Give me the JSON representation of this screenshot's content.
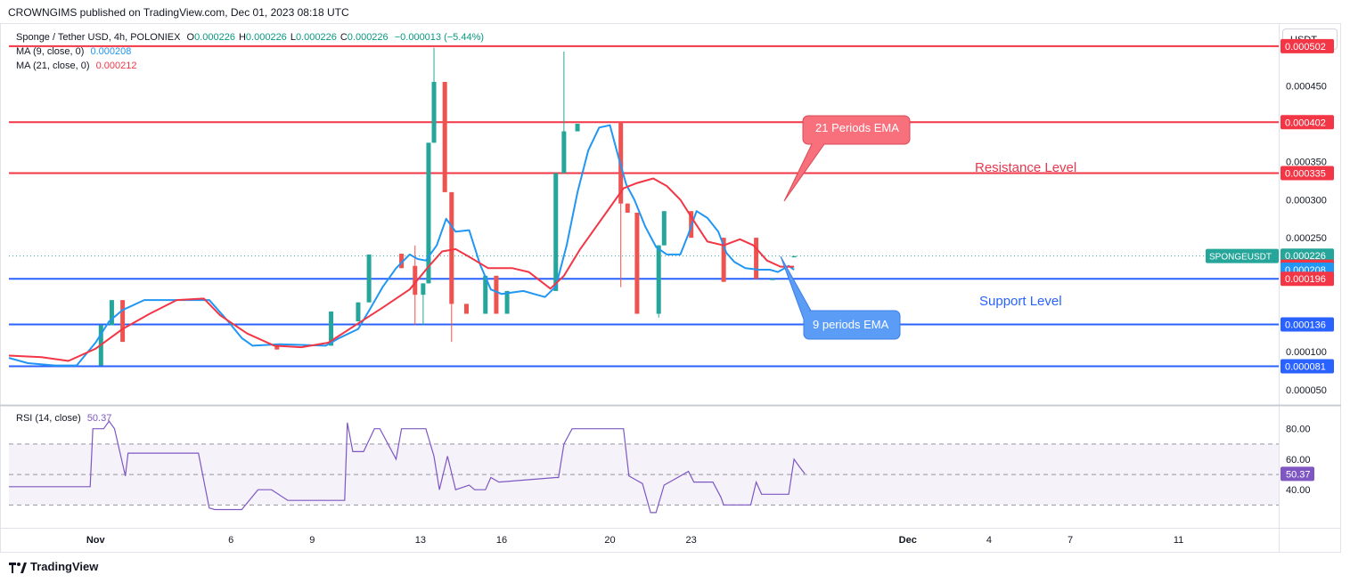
{
  "publisher": "CROWNGIMS published on TradingView.com, Dec 01, 2023 08:18 UTC",
  "header": {
    "title": "Sponge / Tether USD, 4h, POLONIEX",
    "ohlc": [
      {
        "k": "O",
        "v": "0.000226"
      },
      {
        "k": "H",
        "v": "0.000226"
      },
      {
        "k": "L",
        "v": "0.000226"
      },
      {
        "k": "C",
        "v": "0.000226"
      }
    ],
    "change": "−0.000013 (−5.44%)",
    "ma9_label": "MA (9, close, 0)",
    "ma9_value": "0.000208",
    "ma21_label": "MA (21, close, 0)",
    "ma21_value": "0.000212"
  },
  "unit_button": "USDT",
  "rsi": {
    "label": "RSI (14, close)",
    "value": "50.37",
    "ticks": [
      "80.00",
      "60.00",
      "40.00"
    ],
    "upper_band": 70,
    "lower_band": 30
  },
  "annotations": {
    "ema21": "21 Periods EMA",
    "ema9": "9 periods EMA",
    "resistance": "Resistance Level",
    "support": "Support Level"
  },
  "footer": {
    "brand": "TradingView"
  },
  "colors": {
    "bull": "#26a69a",
    "bear": "#ef5350",
    "ma9": "#2196f3",
    "ma21": "#f23645",
    "resistance_line": "#f23645",
    "support_line": "#2962ff",
    "rsi_line": "#7e57c2",
    "ema21_callout": "#f7707c",
    "ema9_callout": "#5b9cf6"
  },
  "chart_data": [
    {
      "type": "line",
      "name": "price",
      "price_axis": {
        "ticks": [
          "0.000450",
          "0.000350",
          "0.000300",
          "0.000250",
          "0.000100",
          "0.000050"
        ],
        "tick_values": [
          0.00045,
          0.00035,
          0.0003,
          0.00025,
          0.0001,
          5e-05
        ],
        "ylim": [
          3e-05,
          0.00053
        ]
      },
      "x_axis": {
        "labels": [
          "Nov",
          "6",
          "9",
          "13",
          "16",
          "20",
          "23",
          "Dec",
          "4",
          "7",
          "11"
        ],
        "label_days": [
          1,
          6,
          9,
          13,
          16,
          20,
          23,
          31,
          34,
          37,
          41
        ],
        "xlim": [
          -2.2,
          44.7
        ]
      },
      "horizontal_levels": [
        {
          "value": 0.000502,
          "label": "0.000502",
          "kind": "resistance"
        },
        {
          "value": 0.000402,
          "label": "0.000402",
          "kind": "resistance"
        },
        {
          "value": 0.000335,
          "label": "0.000335",
          "kind": "resistance"
        },
        {
          "value": 0.000196,
          "label": "0.000196",
          "kind": "support"
        },
        {
          "value": 0.000136,
          "label": "0.000136",
          "kind": "support"
        },
        {
          "value": 8.1e-05,
          "label": "0.000081",
          "kind": "support"
        }
      ],
      "price_labels": [
        {
          "value": 0.000226,
          "text": "0.000226",
          "tag": "SPONGEUSDT",
          "color": "#26a69a"
        },
        {
          "value": 0.000212,
          "text": "0.000212",
          "color": "#f23645"
        },
        {
          "value": 0.000208,
          "text": "0.000208",
          "color": "#2196f3"
        },
        {
          "value": 0.000196,
          "text": "0.000196",
          "color": "#f23645"
        }
      ],
      "current_price": 0.000226,
      "candles": [
        {
          "d": 1.2,
          "o": 8.2e-05,
          "c": 0.000135,
          "h": 0.000135,
          "l": 8.2e-05
        },
        {
          "d": 1.6,
          "o": 0.000135,
          "c": 0.000168,
          "h": 0.000168,
          "l": 0.000135
        },
        {
          "d": 2.0,
          "o": 0.000168,
          "c": 0.000113,
          "h": 0.000168,
          "l": 0.000113
        },
        {
          "d": 7.7,
          "o": 0.00011,
          "c": 0.000103,
          "h": 0.00011,
          "l": 0.000103
        },
        {
          "d": 9.7,
          "o": 0.000108,
          "c": 0.000153,
          "h": 0.000153,
          "l": 0.000108
        },
        {
          "d": 10.7,
          "o": 0.00014,
          "c": 0.000165,
          "h": 0.000165,
          "l": 0.00014
        },
        {
          "d": 11.1,
          "o": 0.000165,
          "c": 0.000228,
          "h": 0.000228,
          "l": 0.000165
        },
        {
          "d": 12.3,
          "o": 0.000229,
          "c": 0.00021,
          "h": 0.000229,
          "l": 0.00021
        },
        {
          "d": 12.8,
          "o": 0.000213,
          "c": 0.000175,
          "h": 0.00024,
          "l": 0.000135
        },
        {
          "d": 13.1,
          "o": 0.000175,
          "c": 0.00019,
          "h": 0.00019,
          "l": 0.000135
        },
        {
          "d": 13.3,
          "o": 0.00019,
          "c": 0.000375,
          "h": 0.000375,
          "l": 0.00019
        },
        {
          "d": 13.5,
          "o": 0.000375,
          "c": 0.000455,
          "h": 0.0005,
          "l": 0.000375
        },
        {
          "d": 13.9,
          "o": 0.000455,
          "c": 0.00031,
          "h": 0.000455,
          "l": 0.00031
        },
        {
          "d": 14.15,
          "o": 0.00031,
          "c": 0.000163,
          "h": 0.00031,
          "l": 0.000113
        },
        {
          "d": 14.7,
          "o": 0.000163,
          "c": 0.00015,
          "h": 0.000163,
          "l": 0.00015
        },
        {
          "d": 15.4,
          "o": 0.00015,
          "c": 0.0002,
          "h": 0.0002,
          "l": 0.00015
        },
        {
          "d": 15.8,
          "o": 0.0002,
          "c": 0.00015,
          "h": 0.0002,
          "l": 0.00015
        },
        {
          "d": 16.2,
          "o": 0.00015,
          "c": 0.00018,
          "h": 0.00018,
          "l": 0.00015
        },
        {
          "d": 18.0,
          "o": 0.00018,
          "c": 0.000335,
          "h": 0.000335,
          "l": 0.00018
        },
        {
          "d": 18.3,
          "o": 0.000335,
          "c": 0.00039,
          "h": 0.000495,
          "l": 0.000335
        },
        {
          "d": 18.8,
          "o": 0.00039,
          "c": 0.0004,
          "h": 0.0004,
          "l": 0.00039
        },
        {
          "d": 20.4,
          "o": 0.000402,
          "c": 0.000295,
          "h": 0.000402,
          "l": 0.000185
        },
        {
          "d": 20.65,
          "o": 0.000295,
          "c": 0.000283,
          "h": 0.000295,
          "l": 0.000283
        },
        {
          "d": 21.0,
          "o": 0.000283,
          "c": 0.00015,
          "h": 0.000283,
          "l": 0.00015
        },
        {
          "d": 21.8,
          "o": 0.00015,
          "c": 0.00024,
          "h": 0.00024,
          "l": 0.000145
        },
        {
          "d": 22.0,
          "o": 0.00024,
          "c": 0.000285,
          "h": 0.000285,
          "l": 0.00024
        },
        {
          "d": 23.0,
          "o": 0.000285,
          "c": 0.00025,
          "h": 0.000285,
          "l": 0.00025
        },
        {
          "d": 24.2,
          "o": 0.00025,
          "c": 0.000192,
          "h": 0.00025,
          "l": 0.000192
        },
        {
          "d": 25.4,
          "o": 0.00025,
          "c": 0.000196,
          "h": 0.00025,
          "l": 0.000196
        },
        {
          "d": 26.0,
          "o": 0.000196,
          "c": 0.000196,
          "h": 0.000196,
          "l": 0.000196
        },
        {
          "d": 26.8,
          "o": 0.000226,
          "c": 0.000226,
          "h": 0.000226,
          "l": 0.000226
        }
      ],
      "series": [
        {
          "name": "MA (9, close, 0)",
          "color": "#2196f3",
          "x": [
            -2.2,
            -1.5,
            -0.5,
            0.3,
            1.0,
            1.5,
            2.0,
            2.8,
            3.8,
            4.6,
            5.2,
            5.9,
            6.4,
            6.8,
            7.8,
            9.5,
            10.0,
            10.7,
            11.2,
            11.6,
            12.1,
            12.6,
            12.9,
            13.2,
            13.6,
            13.95,
            14.3,
            14.8,
            15.2,
            15.6,
            16.0,
            16.8,
            17.2,
            17.6,
            18.0,
            18.4,
            18.8,
            19.2,
            19.6,
            20.0,
            20.3,
            20.6,
            20.9,
            21.3,
            21.7,
            22.1,
            22.6,
            22.9,
            23.2,
            23.6,
            24.0,
            24.3,
            24.6,
            25.0,
            25.5,
            25.9,
            26.2,
            26.6,
            26.8
          ],
          "y": [
            9.2e-05,
            8.5e-05,
            8.2e-05,
            8.2e-05,
            0.000112,
            0.00014,
            0.000155,
            0.000168,
            0.000168,
            0.000168,
            0.000168,
            0.00014,
            0.000118,
            0.000108,
            0.00011,
            0.000108,
            0.000118,
            0.00013,
            0.00016,
            0.000185,
            0.00021,
            0.000228,
            0.000222,
            0.00022,
            0.00024,
            0.000275,
            0.000258,
            0.00026,
            0.000215,
            0.000182,
            0.000176,
            0.00018,
            0.000176,
            0.000172,
            0.000186,
            0.00024,
            0.00031,
            0.000365,
            0.000395,
            0.000398,
            0.000358,
            0.00032,
            0.0003,
            0.000265,
            0.000238,
            0.000228,
            0.000228,
            0.000255,
            0.000285,
            0.000276,
            0.000258,
            0.00023,
            0.000218,
            0.00021,
            0.000208,
            0.000208,
            0.000205,
            0.000213,
            0.000208
          ]
        },
        {
          "name": "MA (21, close, 0)",
          "color": "#f23645",
          "x": [
            -2.2,
            -1.0,
            0.0,
            1.0,
            2.0,
            3.0,
            4.0,
            5.0,
            5.6,
            6.6,
            7.6,
            8.6,
            9.6,
            10.6,
            11.6,
            12.6,
            13.3,
            13.8,
            14.3,
            14.8,
            15.5,
            16.4,
            17.0,
            17.8,
            18.3,
            18.9,
            19.5,
            20.0,
            20.5,
            21.0,
            21.6,
            22.1,
            22.6,
            23.1,
            23.6,
            24.2,
            24.8,
            25.3,
            25.8,
            26.3,
            26.8
          ],
          "y": [
            9.5e-05,
            9.3e-05,
            8.8e-05,
            0.000104,
            0.00013,
            0.00015,
            0.000168,
            0.00017,
            0.000148,
            0.000124,
            0.000108,
            0.000106,
            0.000112,
            0.000135,
            0.000158,
            0.000182,
            0.000212,
            0.000232,
            0.000235,
            0.000225,
            0.00021,
            0.00021,
            0.000205,
            0.000183,
            0.0002,
            0.000235,
            0.000265,
            0.00029,
            0.000315,
            0.000322,
            0.000328,
            0.000318,
            0.0003,
            0.000272,
            0.000245,
            0.00024,
            0.000248,
            0.00024,
            0.00022,
            0.000212,
            0.000212
          ]
        }
      ]
    },
    {
      "type": "line",
      "name": "RSI (14, close)",
      "ylim": [
        15,
        95
      ],
      "x": [
        -2.2,
        0.8,
        0.9,
        1.3,
        1.5,
        1.7,
        2.1,
        2.2,
        4.8,
        5.2,
        5.4,
        6.4,
        7.0,
        7.5,
        8.1,
        8.6,
        10.2,
        10.3,
        10.5,
        10.9,
        11.3,
        11.5,
        12.1,
        12.3,
        12.7,
        13.2,
        13.5,
        13.7,
        14.0,
        14.3,
        14.8,
        15.0,
        15.4,
        15.6,
        15.9,
        18.0,
        18.1,
        18.3,
        18.6,
        18.8,
        20.5,
        20.7,
        21.0,
        21.2,
        21.5,
        21.7,
        22.0,
        22.9,
        23.1,
        23.8,
        24.1,
        24.2,
        25.2,
        25.4,
        25.6,
        26.6,
        26.8,
        27.0,
        27.2
      ],
      "y": [
        42,
        42,
        80,
        80,
        85,
        80,
        49,
        64,
        64,
        28,
        27,
        27,
        40,
        40,
        33,
        33,
        33,
        84,
        65,
        65,
        80,
        80,
        60,
        80,
        80,
        80,
        62,
        40,
        62,
        40,
        43,
        40,
        40,
        48,
        45,
        48,
        48,
        70,
        80,
        80,
        80,
        49,
        46,
        44,
        25,
        25,
        43,
        52,
        45,
        45,
        35,
        30,
        30,
        45,
        37,
        37,
        60,
        55,
        50.37
      ]
    }
  ]
}
